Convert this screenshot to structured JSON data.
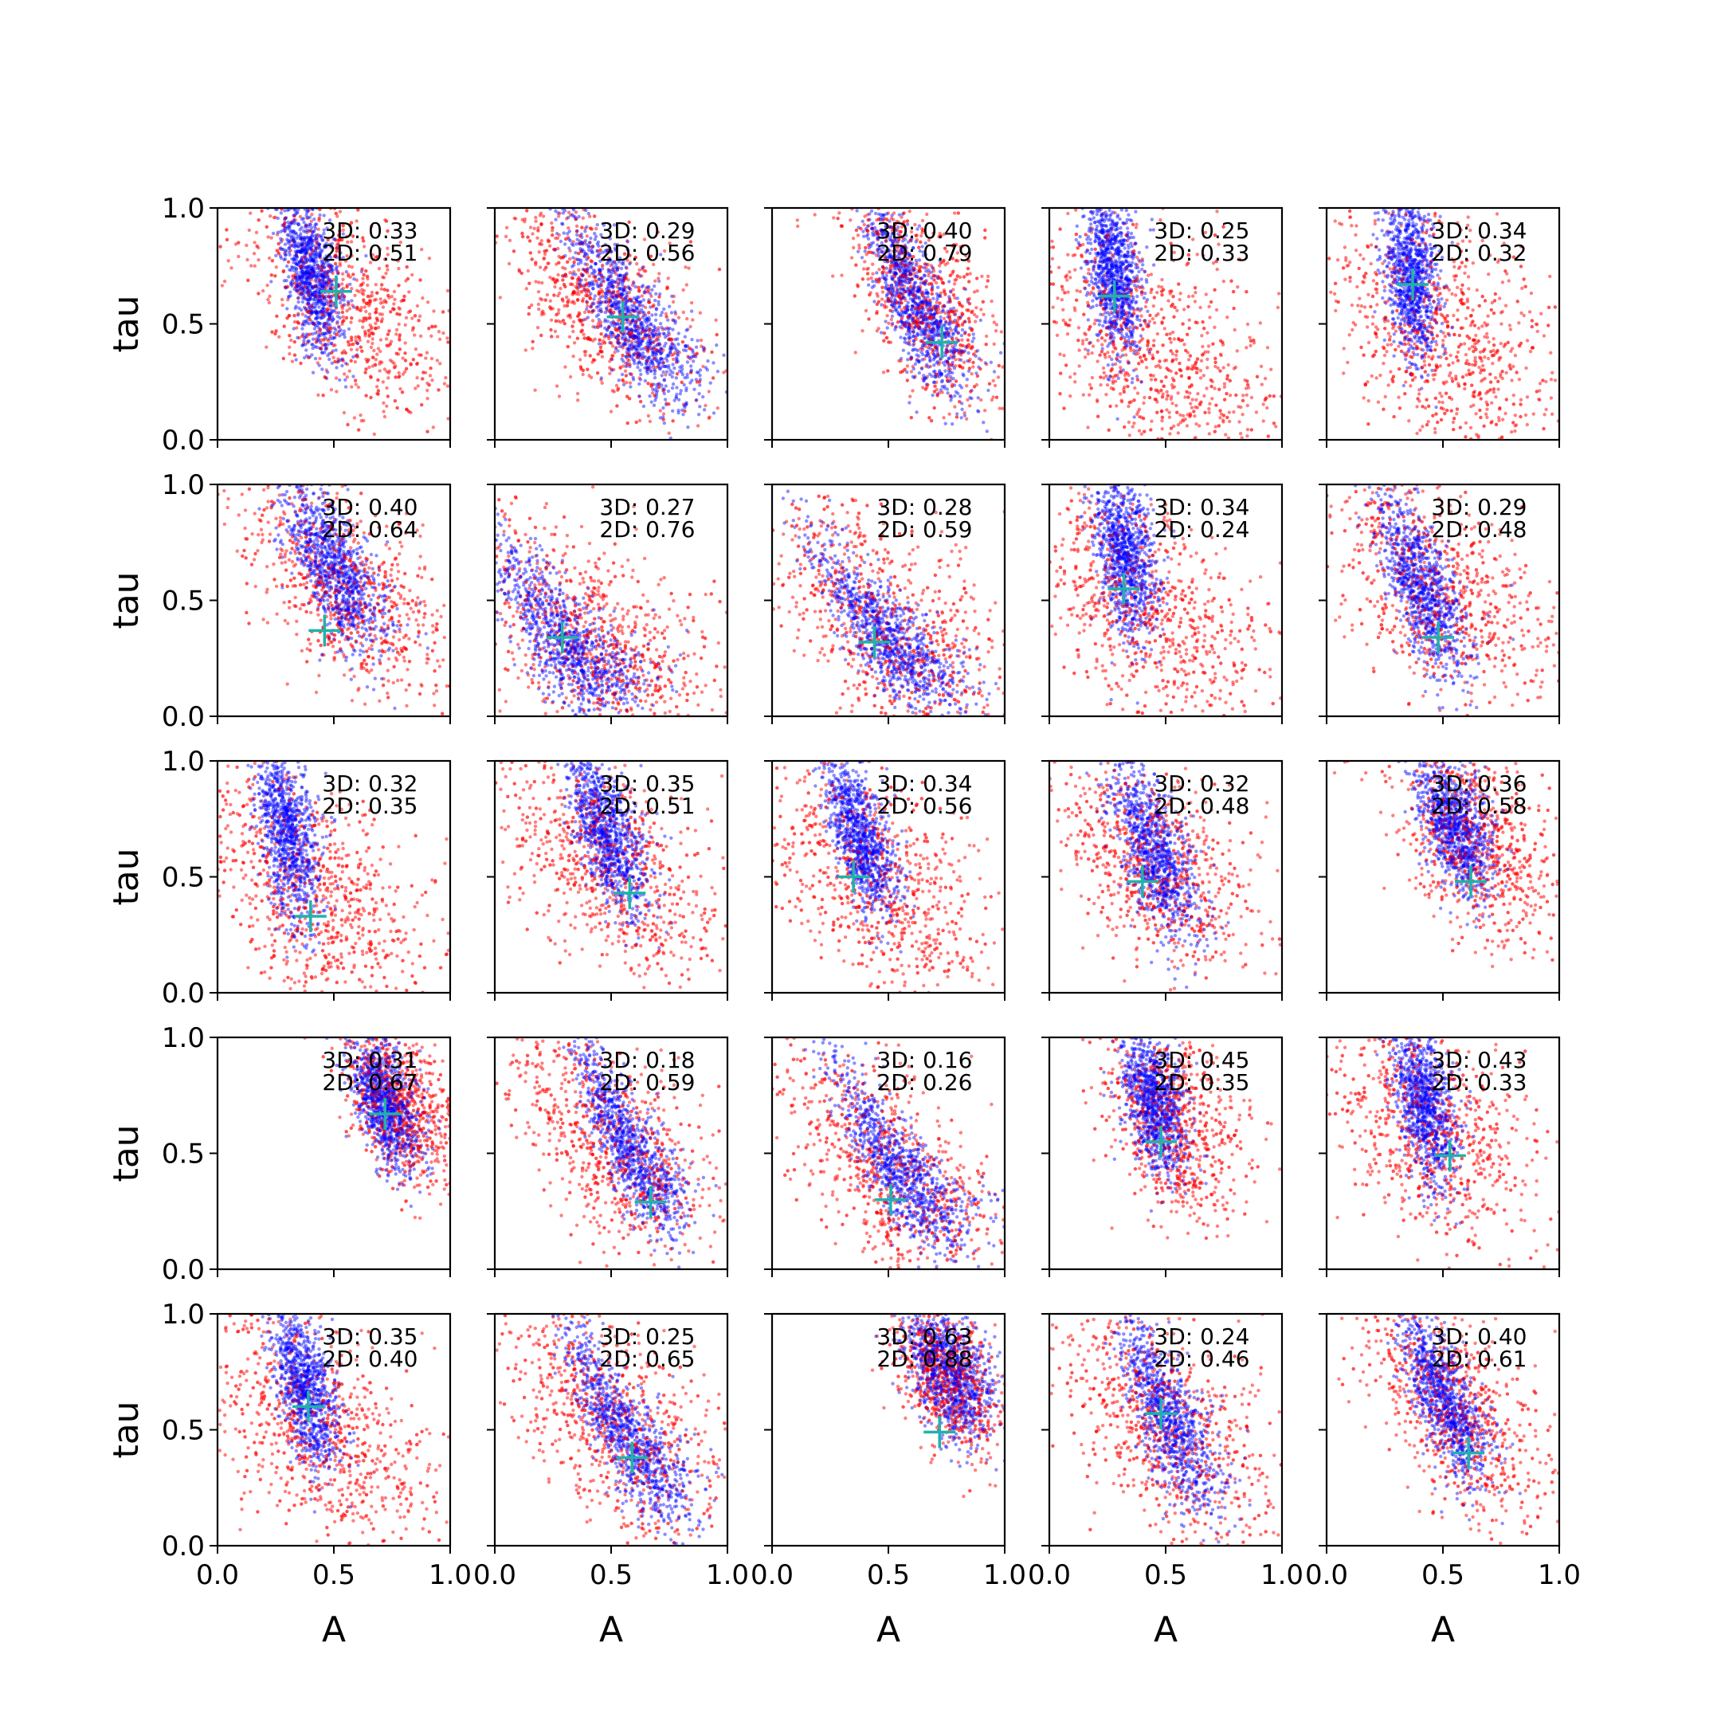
{
  "figure": {
    "type": "scatter-grid",
    "rows": 5,
    "cols": 5,
    "x_label": "A",
    "y_label": "tau",
    "xlim": [
      0,
      1
    ],
    "ylim": [
      0,
      1
    ],
    "x_ticks": [
      "0.0",
      "0.5",
      "1.0"
    ],
    "y_ticks": [
      "0.0",
      "0.5",
      "1.0"
    ],
    "colors": {
      "samples_2d": "#ff0000",
      "samples_3d": "#0000ff",
      "truth_marker": "#20b2aa"
    }
  },
  "chart_data": [
    {
      "type": "scatter",
      "row": 0,
      "col": 0,
      "label_3d": "3D: 0.33",
      "label_2d": "2D: 0.51",
      "truth": {
        "A": 0.51,
        "tau": 0.64
      },
      "blue": {
        "cx": 0.4,
        "cy": 0.72,
        "sx": 0.07,
        "sy": 0.18,
        "rho": -0.55,
        "skew": 0.25
      },
      "red": {
        "cx": 0.55,
        "cy": 0.6,
        "sx": 0.22,
        "sy": 0.24,
        "rho": -0.55,
        "skew": 0.2
      }
    },
    {
      "type": "scatter",
      "row": 0,
      "col": 1,
      "label_3d": "3D: 0.29",
      "label_2d": "2D: 0.56",
      "truth": {
        "A": 0.55,
        "tau": 0.53
      },
      "blue": {
        "cx": 0.58,
        "cy": 0.55,
        "sx": 0.16,
        "sy": 0.22,
        "rho": -0.85,
        "skew": 0.45
      },
      "red": {
        "cx": 0.45,
        "cy": 0.6,
        "sx": 0.22,
        "sy": 0.25,
        "rho": -0.65,
        "skew": 0.3
      }
    },
    {
      "type": "scatter",
      "row": 0,
      "col": 2,
      "label_3d": "3D: 0.40",
      "label_2d": "2D: 0.79",
      "truth": {
        "A": 0.73,
        "tau": 0.42
      },
      "blue": {
        "cx": 0.62,
        "cy": 0.6,
        "sx": 0.12,
        "sy": 0.22,
        "rho": -0.8,
        "skew": 0.35
      },
      "red": {
        "cx": 0.65,
        "cy": 0.6,
        "sx": 0.18,
        "sy": 0.25,
        "rho": -0.6,
        "skew": 0.3
      }
    },
    {
      "type": "scatter",
      "row": 0,
      "col": 3,
      "label_3d": "3D: 0.25",
      "label_2d": "2D: 0.33",
      "truth": {
        "A": 0.28,
        "tau": 0.62
      },
      "blue": {
        "cx": 0.28,
        "cy": 0.72,
        "sx": 0.06,
        "sy": 0.18,
        "rho": -0.35,
        "skew": 0.15
      },
      "red": {
        "cx": 0.45,
        "cy": 0.4,
        "sx": 0.28,
        "sy": 0.3,
        "rho": -0.5,
        "skew": 0.25
      }
    },
    {
      "type": "scatter",
      "row": 0,
      "col": 4,
      "label_3d": "3D: 0.34",
      "label_2d": "2D: 0.32",
      "truth": {
        "A": 0.37,
        "tau": 0.67
      },
      "blue": {
        "cx": 0.36,
        "cy": 0.72,
        "sx": 0.06,
        "sy": 0.18,
        "rho": -0.35,
        "skew": 0.15
      },
      "red": {
        "cx": 0.5,
        "cy": 0.45,
        "sx": 0.28,
        "sy": 0.3,
        "rho": -0.5,
        "skew": 0.25
      }
    },
    {
      "type": "scatter",
      "row": 1,
      "col": 0,
      "label_3d": "3D: 0.40",
      "label_2d": "2D: 0.64",
      "truth": {
        "A": 0.46,
        "tau": 0.37
      },
      "blue": {
        "cx": 0.5,
        "cy": 0.65,
        "sx": 0.12,
        "sy": 0.2,
        "rho": -0.75,
        "skew": 0.3
      },
      "red": {
        "cx": 0.55,
        "cy": 0.55,
        "sx": 0.22,
        "sy": 0.22,
        "rho": -0.55,
        "skew": 0.2
      }
    },
    {
      "type": "scatter",
      "row": 1,
      "col": 1,
      "label_3d": "3D: 0.27",
      "label_2d": "2D: 0.76",
      "truth": {
        "A": 0.29,
        "tau": 0.34
      },
      "blue": {
        "cx": 0.3,
        "cy": 0.35,
        "sx": 0.18,
        "sy": 0.22,
        "rho": -0.8,
        "skew": 0.55
      },
      "red": {
        "cx": 0.4,
        "cy": 0.35,
        "sx": 0.28,
        "sy": 0.28,
        "rho": -0.6,
        "skew": 0.4
      }
    },
    {
      "type": "scatter",
      "row": 1,
      "col": 2,
      "label_3d": "3D: 0.28",
      "label_2d": "2D: 0.59",
      "truth": {
        "A": 0.44,
        "tau": 0.32
      },
      "blue": {
        "cx": 0.5,
        "cy": 0.35,
        "sx": 0.16,
        "sy": 0.18,
        "rho": -0.8,
        "skew": 0.45
      },
      "red": {
        "cx": 0.5,
        "cy": 0.4,
        "sx": 0.26,
        "sy": 0.28,
        "rho": -0.55,
        "skew": 0.35
      }
    },
    {
      "type": "scatter",
      "row": 1,
      "col": 3,
      "label_3d": "3D: 0.34",
      "label_2d": "2D: 0.24",
      "truth": {
        "A": 0.32,
        "tau": 0.55
      },
      "blue": {
        "cx": 0.32,
        "cy": 0.72,
        "sx": 0.07,
        "sy": 0.18,
        "rho": -0.4,
        "skew": 0.2
      },
      "red": {
        "cx": 0.45,
        "cy": 0.45,
        "sx": 0.28,
        "sy": 0.3,
        "rho": -0.55,
        "skew": 0.25
      }
    },
    {
      "type": "scatter",
      "row": 1,
      "col": 4,
      "label_3d": "3D: 0.29",
      "label_2d": "2D: 0.48",
      "truth": {
        "A": 0.48,
        "tau": 0.34
      },
      "blue": {
        "cx": 0.42,
        "cy": 0.55,
        "sx": 0.1,
        "sy": 0.2,
        "rho": -0.7,
        "skew": 0.3
      },
      "red": {
        "cx": 0.5,
        "cy": 0.55,
        "sx": 0.25,
        "sy": 0.26,
        "rho": -0.55,
        "skew": 0.2
      }
    },
    {
      "type": "scatter",
      "row": 2,
      "col": 0,
      "label_3d": "3D: 0.32",
      "label_2d": "2D: 0.35",
      "truth": {
        "A": 0.4,
        "tau": 0.33
      },
      "blue": {
        "cx": 0.3,
        "cy": 0.7,
        "sx": 0.07,
        "sy": 0.2,
        "rho": -0.45,
        "skew": 0.15
      },
      "red": {
        "cx": 0.4,
        "cy": 0.45,
        "sx": 0.26,
        "sy": 0.28,
        "rho": -0.55,
        "skew": 0.25
      }
    },
    {
      "type": "scatter",
      "row": 2,
      "col": 1,
      "label_3d": "3D: 0.35",
      "label_2d": "2D: 0.51",
      "truth": {
        "A": 0.58,
        "tau": 0.43
      },
      "blue": {
        "cx": 0.48,
        "cy": 0.7,
        "sx": 0.09,
        "sy": 0.18,
        "rho": -0.65,
        "skew": 0.3
      },
      "red": {
        "cx": 0.5,
        "cy": 0.55,
        "sx": 0.25,
        "sy": 0.26,
        "rho": -0.55,
        "skew": 0.25
      }
    },
    {
      "type": "scatter",
      "row": 2,
      "col": 2,
      "label_3d": "3D: 0.34",
      "label_2d": "2D: 0.56",
      "truth": {
        "A": 0.35,
        "tau": 0.5
      },
      "blue": {
        "cx": 0.38,
        "cy": 0.68,
        "sx": 0.08,
        "sy": 0.18,
        "rho": -0.6,
        "skew": 0.25
      },
      "red": {
        "cx": 0.45,
        "cy": 0.5,
        "sx": 0.25,
        "sy": 0.28,
        "rho": -0.55,
        "skew": 0.25
      }
    },
    {
      "type": "scatter",
      "row": 2,
      "col": 3,
      "label_3d": "3D: 0.32",
      "label_2d": "2D: 0.48",
      "truth": {
        "A": 0.4,
        "tau": 0.48
      },
      "blue": {
        "cx": 0.45,
        "cy": 0.62,
        "sx": 0.1,
        "sy": 0.2,
        "rho": -0.65,
        "skew": 0.25
      },
      "red": {
        "cx": 0.45,
        "cy": 0.58,
        "sx": 0.22,
        "sy": 0.24,
        "rho": -0.55,
        "skew": 0.2
      }
    },
    {
      "type": "scatter",
      "row": 2,
      "col": 4,
      "label_3d": "3D: 0.36",
      "label_2d": "2D: 0.58",
      "truth": {
        "A": 0.62,
        "tau": 0.48
      },
      "blue": {
        "cx": 0.55,
        "cy": 0.72,
        "sx": 0.09,
        "sy": 0.16,
        "rho": -0.55,
        "skew": 0.25
      },
      "red": {
        "cx": 0.65,
        "cy": 0.65,
        "sx": 0.18,
        "sy": 0.22,
        "rho": -0.45,
        "skew": 0.2
      }
    },
    {
      "type": "scatter",
      "row": 3,
      "col": 0,
      "label_3d": "3D: 0.31",
      "label_2d": "2D: 0.67",
      "truth": {
        "A": 0.72,
        "tau": 0.67
      },
      "blue": {
        "cx": 0.72,
        "cy": 0.72,
        "sx": 0.08,
        "sy": 0.15,
        "rho": -0.55,
        "skew": 0.2
      },
      "red": {
        "cx": 0.78,
        "cy": 0.72,
        "sx": 0.13,
        "sy": 0.18,
        "rho": -0.5,
        "skew": 0.2
      }
    },
    {
      "type": "scatter",
      "row": 3,
      "col": 1,
      "label_3d": "3D: 0.18",
      "label_2d": "2D: 0.59",
      "truth": {
        "A": 0.67,
        "tau": 0.29
      },
      "blue": {
        "cx": 0.58,
        "cy": 0.55,
        "sx": 0.13,
        "sy": 0.22,
        "rho": -0.85,
        "skew": 0.5
      },
      "red": {
        "cx": 0.5,
        "cy": 0.55,
        "sx": 0.24,
        "sy": 0.26,
        "rho": -0.6,
        "skew": 0.3
      }
    },
    {
      "type": "scatter",
      "row": 3,
      "col": 2,
      "label_3d": "3D: 0.16",
      "label_2d": "2D: 0.26",
      "truth": {
        "A": 0.51,
        "tau": 0.3
      },
      "blue": {
        "cx": 0.55,
        "cy": 0.45,
        "sx": 0.16,
        "sy": 0.22,
        "rho": -0.85,
        "skew": 0.55
      },
      "red": {
        "cx": 0.5,
        "cy": 0.45,
        "sx": 0.24,
        "sy": 0.26,
        "rho": -0.6,
        "skew": 0.35
      }
    },
    {
      "type": "scatter",
      "row": 3,
      "col": 3,
      "label_3d": "3D: 0.45",
      "label_2d": "2D: 0.35",
      "truth": {
        "A": 0.48,
        "tau": 0.55
      },
      "blue": {
        "cx": 0.45,
        "cy": 0.72,
        "sx": 0.07,
        "sy": 0.16,
        "rho": -0.45,
        "skew": 0.15
      },
      "red": {
        "cx": 0.52,
        "cy": 0.65,
        "sx": 0.16,
        "sy": 0.22,
        "rho": -0.45,
        "skew": 0.2
      }
    },
    {
      "type": "scatter",
      "row": 3,
      "col": 4,
      "label_3d": "3D: 0.43",
      "label_2d": "2D: 0.33",
      "truth": {
        "A": 0.53,
        "tau": 0.49
      },
      "blue": {
        "cx": 0.42,
        "cy": 0.72,
        "sx": 0.07,
        "sy": 0.18,
        "rho": -0.5,
        "skew": 0.2
      },
      "red": {
        "cx": 0.45,
        "cy": 0.6,
        "sx": 0.24,
        "sy": 0.26,
        "rho": -0.5,
        "skew": 0.2
      }
    },
    {
      "type": "scatter",
      "row": 4,
      "col": 0,
      "label_3d": "3D: 0.35",
      "label_2d": "2D: 0.40",
      "truth": {
        "A": 0.39,
        "tau": 0.6
      },
      "blue": {
        "cx": 0.38,
        "cy": 0.68,
        "sx": 0.07,
        "sy": 0.18,
        "rho": -0.55,
        "skew": 0.2
      },
      "red": {
        "cx": 0.45,
        "cy": 0.5,
        "sx": 0.25,
        "sy": 0.28,
        "rho": -0.55,
        "skew": 0.25
      }
    },
    {
      "type": "scatter",
      "row": 4,
      "col": 1,
      "label_3d": "3D: 0.25",
      "label_2d": "2D: 0.65",
      "truth": {
        "A": 0.59,
        "tau": 0.38
      },
      "blue": {
        "cx": 0.55,
        "cy": 0.52,
        "sx": 0.14,
        "sy": 0.22,
        "rho": -0.85,
        "skew": 0.45
      },
      "red": {
        "cx": 0.5,
        "cy": 0.55,
        "sx": 0.25,
        "sy": 0.27,
        "rho": -0.6,
        "skew": 0.3
      }
    },
    {
      "type": "scatter",
      "row": 4,
      "col": 2,
      "label_3d": "3D: 0.63",
      "label_2d": "2D: 0.88",
      "truth": {
        "A": 0.72,
        "tau": 0.49
      },
      "blue": {
        "cx": 0.76,
        "cy": 0.75,
        "sx": 0.1,
        "sy": 0.14,
        "rho": -0.45,
        "skew": 0.2
      },
      "red": {
        "cx": 0.75,
        "cy": 0.72,
        "sx": 0.12,
        "sy": 0.16,
        "rho": -0.45,
        "skew": 0.2
      }
    },
    {
      "type": "scatter",
      "row": 4,
      "col": 3,
      "label_3d": "3D: 0.24",
      "label_2d": "2D: 0.46",
      "truth": {
        "A": 0.48,
        "tau": 0.57
      },
      "blue": {
        "cx": 0.52,
        "cy": 0.55,
        "sx": 0.11,
        "sy": 0.22,
        "rho": -0.75,
        "skew": 0.35
      },
      "red": {
        "cx": 0.5,
        "cy": 0.55,
        "sx": 0.25,
        "sy": 0.28,
        "rho": -0.55,
        "skew": 0.3
      }
    },
    {
      "type": "scatter",
      "row": 4,
      "col": 4,
      "label_3d": "3D: 0.40",
      "label_2d": "2D: 0.61",
      "truth": {
        "A": 0.61,
        "tau": 0.4
      },
      "blue": {
        "cx": 0.5,
        "cy": 0.65,
        "sx": 0.1,
        "sy": 0.2,
        "rho": -0.75,
        "skew": 0.3
      },
      "red": {
        "cx": 0.55,
        "cy": 0.6,
        "sx": 0.2,
        "sy": 0.24,
        "rho": -0.6,
        "skew": 0.25
      }
    }
  ]
}
